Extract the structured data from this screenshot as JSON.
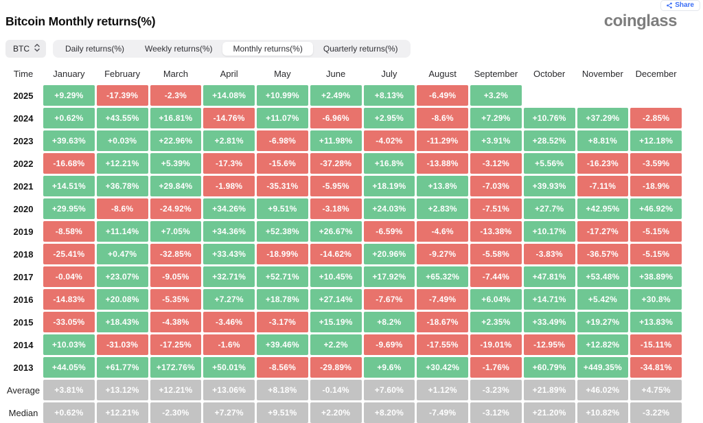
{
  "header": {
    "title": "Bitcoin Monthly returns(%)",
    "logo_text": "coinglass",
    "share_label": "Share"
  },
  "controls": {
    "symbol": "BTC",
    "tabs": [
      {
        "label": "Daily returns(%)",
        "active": false
      },
      {
        "label": "Weekly returns(%)",
        "active": false
      },
      {
        "label": "Monthly returns(%)",
        "active": true
      },
      {
        "label": "Quarterly returns(%)",
        "active": false
      }
    ]
  },
  "chart_data": {
    "type": "heatmap",
    "title": "Bitcoin Monthly returns(%)",
    "time_header": "Time",
    "columns": [
      "January",
      "February",
      "March",
      "April",
      "May",
      "June",
      "July",
      "August",
      "September",
      "October",
      "November",
      "December"
    ],
    "rows": [
      {
        "label": "2025",
        "kind": "year",
        "values": [
          "+9.29%",
          "-17.39%",
          "-2.3%",
          "+14.08%",
          "+10.99%",
          "+2.49%",
          "+8.13%",
          "-6.49%",
          "+3.2%",
          "",
          "",
          ""
        ]
      },
      {
        "label": "2024",
        "kind": "year",
        "values": [
          "+0.62%",
          "+43.55%",
          "+16.81%",
          "-14.76%",
          "+11.07%",
          "-6.96%",
          "+2.95%",
          "-8.6%",
          "+7.29%",
          "+10.76%",
          "+37.29%",
          "-2.85%"
        ]
      },
      {
        "label": "2023",
        "kind": "year",
        "values": [
          "+39.63%",
          "+0.03%",
          "+22.96%",
          "+2.81%",
          "-6.98%",
          "+11.98%",
          "-4.02%",
          "-11.29%",
          "+3.91%",
          "+28.52%",
          "+8.81%",
          "+12.18%"
        ]
      },
      {
        "label": "2022",
        "kind": "year",
        "values": [
          "-16.68%",
          "+12.21%",
          "+5.39%",
          "-17.3%",
          "-15.6%",
          "-37.28%",
          "+16.8%",
          "-13.88%",
          "-3.12%",
          "+5.56%",
          "-16.23%",
          "-3.59%"
        ]
      },
      {
        "label": "2021",
        "kind": "year",
        "values": [
          "+14.51%",
          "+36.78%",
          "+29.84%",
          "-1.98%",
          "-35.31%",
          "-5.95%",
          "+18.19%",
          "+13.8%",
          "-7.03%",
          "+39.93%",
          "-7.11%",
          "-18.9%"
        ]
      },
      {
        "label": "2020",
        "kind": "year",
        "values": [
          "+29.95%",
          "-8.6%",
          "-24.92%",
          "+34.26%",
          "+9.51%",
          "-3.18%",
          "+24.03%",
          "+2.83%",
          "-7.51%",
          "+27.7%",
          "+42.95%",
          "+46.92%"
        ]
      },
      {
        "label": "2019",
        "kind": "year",
        "values": [
          "-8.58%",
          "+11.14%",
          "+7.05%",
          "+34.36%",
          "+52.38%",
          "+26.67%",
          "-6.59%",
          "-4.6%",
          "-13.38%",
          "+10.17%",
          "-17.27%",
          "-5.15%"
        ]
      },
      {
        "label": "2018",
        "kind": "year",
        "values": [
          "-25.41%",
          "+0.47%",
          "-32.85%",
          "+33.43%",
          "-18.99%",
          "-14.62%",
          "+20.96%",
          "-9.27%",
          "-5.58%",
          "-3.83%",
          "-36.57%",
          "-5.15%"
        ]
      },
      {
        "label": "2017",
        "kind": "year",
        "values": [
          "-0.04%",
          "+23.07%",
          "-9.05%",
          "+32.71%",
          "+52.71%",
          "+10.45%",
          "+17.92%",
          "+65.32%",
          "-7.44%",
          "+47.81%",
          "+53.48%",
          "+38.89%"
        ]
      },
      {
        "label": "2016",
        "kind": "year",
        "values": [
          "-14.83%",
          "+20.08%",
          "-5.35%",
          "+7.27%",
          "+18.78%",
          "+27.14%",
          "-7.67%",
          "-7.49%",
          "+6.04%",
          "+14.71%",
          "+5.42%",
          "+30.8%"
        ]
      },
      {
        "label": "2015",
        "kind": "year",
        "values": [
          "-33.05%",
          "+18.43%",
          "-4.38%",
          "-3.46%",
          "-3.17%",
          "+15.19%",
          "+8.2%",
          "-18.67%",
          "+2.35%",
          "+33.49%",
          "+19.27%",
          "+13.83%"
        ]
      },
      {
        "label": "2014",
        "kind": "year",
        "values": [
          "+10.03%",
          "-31.03%",
          "-17.25%",
          "-1.6%",
          "+39.46%",
          "+2.2%",
          "-9.69%",
          "-17.55%",
          "-19.01%",
          "-12.95%",
          "+12.82%",
          "-15.11%"
        ]
      },
      {
        "label": "2013",
        "kind": "year",
        "values": [
          "+44.05%",
          "+61.77%",
          "+172.76%",
          "+50.01%",
          "-8.56%",
          "-29.89%",
          "+9.6%",
          "+30.42%",
          "-1.76%",
          "+60.79%",
          "+449.35%",
          "-34.81%"
        ]
      },
      {
        "label": "Average",
        "kind": "stat",
        "values": [
          "+3.81%",
          "+13.12%",
          "+12.21%",
          "+13.06%",
          "+8.18%",
          "-0.14%",
          "+7.60%",
          "+1.12%",
          "-3.23%",
          "+21.89%",
          "+46.02%",
          "+4.75%"
        ]
      },
      {
        "label": "Median",
        "kind": "stat",
        "values": [
          "+0.62%",
          "+12.21%",
          "-2.30%",
          "+7.27%",
          "+9.51%",
          "+2.20%",
          "+8.20%",
          "-7.49%",
          "-3.12%",
          "+21.20%",
          "+10.82%",
          "-3.22%"
        ]
      }
    ],
    "colors": {
      "positive": "#6fc793",
      "negative": "#e8736c",
      "stat": "#c3c3c3",
      "accent": "#3b6ef5"
    }
  }
}
